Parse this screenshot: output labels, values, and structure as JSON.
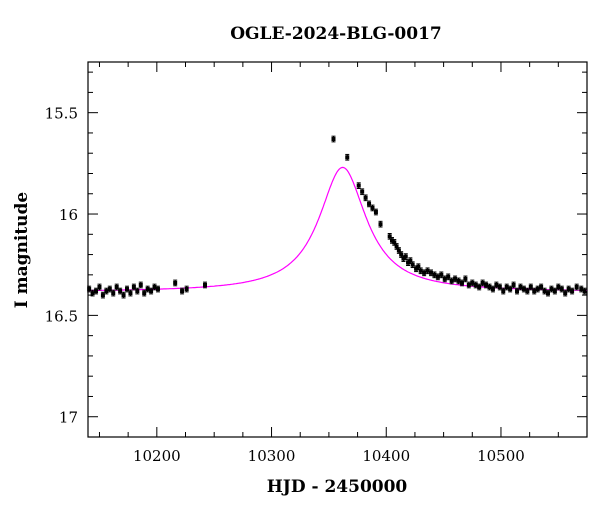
{
  "chart_data": {
    "type": "scatter",
    "title": "OGLE-2024-BLG-0017",
    "xlabel": "HJD - 2450000",
    "ylabel": "I magnitude",
    "xlim": [
      10140,
      10575
    ],
    "ylim": [
      17.1,
      15.25
    ],
    "y_inverted": true,
    "xticks": [
      "10200",
      "10300",
      "10400",
      "10500"
    ],
    "yticks": [
      "15.5",
      "16",
      "16.5",
      "17"
    ],
    "grid": false,
    "series": [
      {
        "kind": "points_with_errorbars",
        "color": "#000000",
        "x": [
          10141,
          10144,
          10147,
          10150,
          10153,
          10156,
          10159,
          10162,
          10165,
          10168,
          10171,
          10174,
          10177,
          10180,
          10183,
          10186,
          10189,
          10192,
          10195,
          10198,
          10201,
          10216,
          10222,
          10226,
          10242,
          10354,
          10366,
          10376,
          10379,
          10382,
          10385,
          10388,
          10391,
          10395,
          10403,
          10405,
          10407,
          10409,
          10411,
          10413,
          10415,
          10417,
          10419,
          10421,
          10423,
          10426,
          10428,
          10430,
          10433,
          10436,
          10439,
          10442,
          10445,
          10448,
          10451,
          10454,
          10457,
          10460,
          10463,
          10466,
          10469,
          10472,
          10475,
          10478,
          10481,
          10484,
          10487,
          10490,
          10493,
          10496,
          10499,
          10502,
          10505,
          10508,
          10511,
          10514,
          10517,
          10520,
          10523,
          10526,
          10529,
          10532,
          10535,
          10538,
          10541,
          10544,
          10547,
          10550,
          10553,
          10556,
          10559,
          10562,
          10566,
          10570,
          10573
        ],
        "y": [
          16.37,
          16.39,
          16.38,
          16.36,
          16.4,
          16.38,
          16.37,
          16.39,
          16.36,
          16.38,
          16.4,
          16.37,
          16.39,
          16.36,
          16.38,
          16.35,
          16.39,
          16.37,
          16.38,
          16.36,
          16.37,
          16.34,
          16.38,
          16.37,
          16.35,
          15.63,
          15.72,
          15.86,
          15.89,
          15.92,
          15.95,
          15.97,
          15.99,
          16.05,
          16.11,
          16.13,
          16.14,
          16.16,
          16.18,
          16.2,
          16.22,
          16.21,
          16.24,
          16.23,
          16.25,
          16.27,
          16.26,
          16.28,
          16.29,
          16.28,
          16.29,
          16.3,
          16.31,
          16.3,
          16.32,
          16.31,
          16.33,
          16.32,
          16.33,
          16.34,
          16.32,
          16.35,
          16.34,
          16.35,
          16.36,
          16.34,
          16.35,
          16.36,
          16.37,
          16.35,
          16.36,
          16.38,
          16.36,
          16.37,
          16.35,
          16.38,
          16.36,
          16.37,
          16.38,
          16.36,
          16.38,
          16.37,
          16.36,
          16.38,
          16.39,
          16.37,
          16.38,
          16.36,
          16.37,
          16.39,
          16.37,
          16.38,
          16.36,
          16.37,
          16.38
        ],
        "err": 0.014
      },
      {
        "kind": "model_curve",
        "color": "#ff00ff",
        "peak_x": 10362,
        "peak_mag": 15.77,
        "baseline_mag": 16.385,
        "width_days": 25
      }
    ]
  }
}
